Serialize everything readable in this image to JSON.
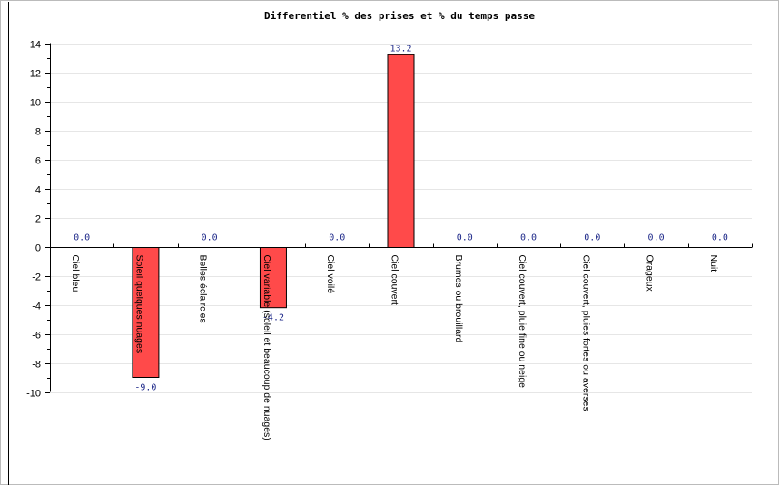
{
  "chart_data": {
    "type": "bar",
    "title": "Differentiel % des prises et % du temps passe",
    "xlabel": "",
    "ylabel": "",
    "ylim": [
      -10,
      14
    ],
    "yticks": [
      -10,
      -8,
      -6,
      -4,
      -2,
      0,
      2,
      4,
      6,
      8,
      10,
      12,
      14
    ],
    "grid": true,
    "legend": "none",
    "categories": [
      "Ciel bleu",
      "Soleil quelques nuages",
      "Belles éclaircies",
      "Ciel variable (soleil et beaucoup de nuages)",
      "Ciel voilé",
      "Ciel couvert",
      "Brumes ou brouillard",
      "Ciel couvert, pluie fine ou neige",
      "Ciel couvert, pluies fortes ou averses",
      "Orageux",
      "Nuit"
    ],
    "values": [
      0.0,
      -9.0,
      0.0,
      -4.2,
      0.0,
      13.2,
      0.0,
      0.0,
      0.0,
      0.0,
      0.0
    ],
    "value_labels": [
      "0.0",
      "-9.0",
      "0.0",
      "-4.2",
      "0.0",
      "13.2",
      "0.0",
      "0.0",
      "0.0",
      "0.0",
      "0.0"
    ],
    "bar_color": "#ff4a4a",
    "bar_stroke": "#000000",
    "value_label_color": "#1f2a8a"
  }
}
